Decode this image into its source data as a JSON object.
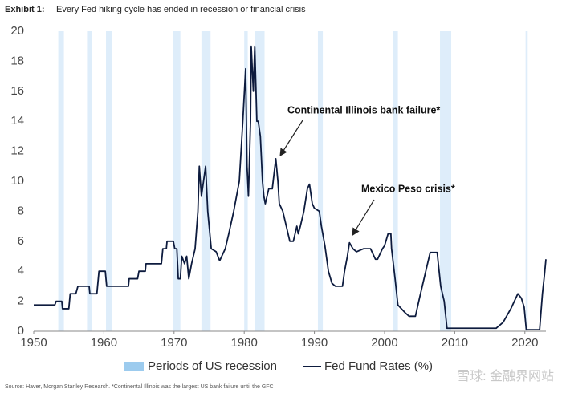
{
  "chart_data": {
    "type": "line",
    "title_label": "Exhibit 1:",
    "title": "Every Fed hiking cycle has ended in recession or financial crisis",
    "source": "Source: Haver, Morgan Stanley Research. *Continental Illinois was the largest US bank failure until the GFC",
    "watermark": "雪球: 金融界网站",
    "xlim": [
      1950,
      2023
    ],
    "xticks": [
      1950,
      1960,
      1970,
      1980,
      1990,
      2000,
      2010,
      2020
    ],
    "ylim": [
      0,
      20
    ],
    "yticks": [
      0,
      2,
      4,
      6,
      8,
      10,
      12,
      14,
      16,
      18,
      20
    ],
    "recession": {
      "name": "Periods of US recession",
      "color": "#deedfa",
      "legend_color": "#9ccbee",
      "periods": [
        [
          1953.5,
          1954.3
        ],
        [
          1957.6,
          1958.3
        ],
        [
          1960.3,
          1961.1
        ],
        [
          1969.9,
          1970.9
        ],
        [
          1973.9,
          1975.2
        ],
        [
          1980.0,
          1980.5
        ],
        [
          1981.5,
          1982.9
        ],
        [
          1990.5,
          1991.2
        ],
        [
          2001.2,
          2001.9
        ],
        [
          2007.9,
          2009.5
        ],
        [
          2020.1,
          2020.4
        ]
      ]
    },
    "x": [
      1950,
      1953,
      1953.2,
      1954,
      1954.1,
      1955,
      1955.2,
      1956,
      1956.3,
      1957.9,
      1958,
      1959,
      1959.3,
      1960.2,
      1960.4,
      1963.5,
      1963.6,
      1964.8,
      1965,
      1965.9,
      1966,
      1968.2,
      1968.4,
      1968.9,
      1969,
      1969.9,
      1970.1,
      1970.4,
      1970.6,
      1970.9,
      1971.1,
      1971.5,
      1971.8,
      1972.1,
      1972.5,
      1973,
      1973.4,
      1973.6,
      1973.9,
      1974.5,
      1974.8,
      1975.3,
      1976,
      1976.5,
      1977.3,
      1977.8,
      1978.5,
      1979.3,
      1979.8,
      1980.2,
      1980.4,
      1980.6,
      1980.9,
      1981.0,
      1981.3,
      1981.5,
      1981.8,
      1982,
      1982.3,
      1982.6,
      1982.8,
      1983,
      1983.5,
      1984,
      1984.5,
      1984.8,
      1985,
      1985.5,
      1986.5,
      1987,
      1987.5,
      1987.7,
      1988,
      1988.5,
      1989,
      1989.3,
      1989.7,
      1990,
      1990.7,
      1991,
      1991.5,
      1992,
      1992.5,
      1993,
      1994,
      1994.3,
      1994.7,
      1995,
      1995.5,
      1996,
      1997,
      1998,
      1998.7,
      1999,
      1999.7,
      2000,
      2000.5,
      2000.9,
      2001,
      2001.5,
      2001.9,
      2002.9,
      2003.5,
      2004.4,
      2005,
      2006.5,
      2007.5,
      2008,
      2008.5,
      2008.9,
      2015.9,
      2016.9,
      2018,
      2019,
      2019.5,
      2019.9,
      2020.2,
      2022.1,
      2022.5,
      2022.8,
      2023
    ],
    "series": [
      {
        "name": "Fed Fund Rates (%)",
        "color": "#0d1b3e",
        "values": [
          1.75,
          1.75,
          2.0,
          2.0,
          1.5,
          1.5,
          2.5,
          2.5,
          3.0,
          3.0,
          2.5,
          2.5,
          4.0,
          4.0,
          3.0,
          3.0,
          3.5,
          3.5,
          4.0,
          4.0,
          4.5,
          4.5,
          5.5,
          5.5,
          6.0,
          6.0,
          5.5,
          5.5,
          3.5,
          3.5,
          5.0,
          4.5,
          5.0,
          3.5,
          4.5,
          5.5,
          8,
          11,
          9,
          11,
          8,
          5.5,
          5.3,
          4.7,
          5.5,
          6.5,
          8,
          10,
          14,
          17.5,
          11,
          9,
          14,
          19,
          16,
          19,
          14,
          14,
          13,
          10,
          9,
          8.5,
          9.5,
          9.5,
          11.5,
          10,
          8.5,
          8,
          6,
          6,
          7,
          6.5,
          7,
          8,
          9.5,
          9.8,
          8.5,
          8.2,
          8,
          7,
          5.7,
          4,
          3.2,
          3,
          3,
          4,
          5,
          5.9,
          5.5,
          5.3,
          5.5,
          5.5,
          4.8,
          4.8,
          5.5,
          5.7,
          6.5,
          6.5,
          5.5,
          3.5,
          1.75,
          1.25,
          1.0,
          1.0,
          2.25,
          5.25,
          5.25,
          3,
          2,
          0.2,
          0.2,
          0.6,
          1.5,
          2.5,
          2.2,
          1.6,
          0.1,
          0.1,
          2.5,
          3.8,
          4.8
        ]
      }
    ],
    "annotations": [
      {
        "text": "Continental Illinois bank failure*"
      },
      {
        "text": "Mexico Peso crisis*"
      }
    ]
  }
}
